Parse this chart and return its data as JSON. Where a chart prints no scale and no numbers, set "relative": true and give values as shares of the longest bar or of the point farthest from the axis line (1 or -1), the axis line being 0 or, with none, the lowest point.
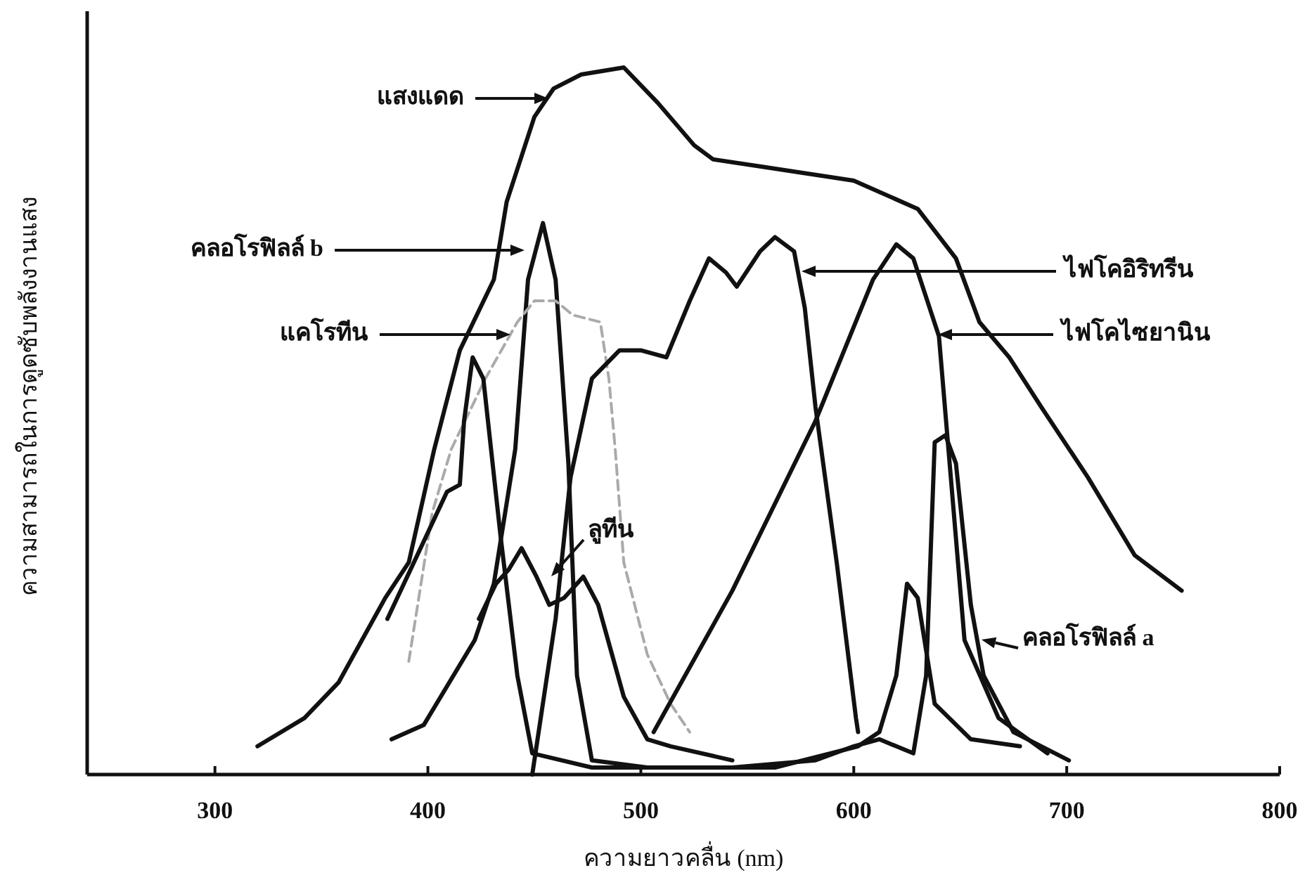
{
  "chart_data": {
    "type": "line",
    "relative": true,
    "legend": "right",
    "xlabel": "ความยาวคลื่น (nm)",
    "ylabel": "ความสามารถในการดูดซับพลังงานแสง",
    "xlim": [
      240,
      800
    ],
    "xticks": [
      300,
      400,
      500,
      600,
      700,
      800
    ],
    "series": [
      {
        "name": "แสงแดด",
        "color": "#111111",
        "x": [
          320,
          342,
          358,
          380,
          391,
          403,
          415,
          431,
          437,
          450,
          459,
          472,
          492,
          508,
          525,
          534,
          556,
          600,
          630,
          648,
          659,
          673,
          688,
          710,
          732,
          754
        ],
        "values": [
          0.04,
          0.08,
          0.13,
          0.25,
          0.3,
          0.46,
          0.6,
          0.7,
          0.81,
          0.93,
          0.97,
          0.99,
          1.0,
          0.95,
          0.89,
          0.87,
          0.86,
          0.84,
          0.8,
          0.73,
          0.64,
          0.59,
          0.52,
          0.42,
          0.31,
          0.26
        ]
      },
      {
        "name": "คลอโรฟิลล์ b",
        "color": "#111111",
        "x": [
          383,
          398,
          422,
          431,
          441,
          447,
          454,
          460,
          466,
          470,
          477,
          503,
          563,
          602,
          612,
          620,
          625,
          630,
          638,
          655,
          678
        ],
        "values": [
          0.05,
          0.07,
          0.19,
          0.27,
          0.46,
          0.7,
          0.78,
          0.7,
          0.44,
          0.14,
          0.02,
          0.01,
          0.01,
          0.04,
          0.06,
          0.14,
          0.27,
          0.25,
          0.1,
          0.05,
          0.04
        ]
      },
      {
        "name": "แคโรทีน",
        "color": "#aaaaaa",
        "line_style": "dashed",
        "x": [
          391,
          402,
          411,
          427,
          442,
          450,
          460,
          468,
          481,
          485,
          488,
          492,
          503,
          514,
          523
        ],
        "values": [
          0.16,
          0.37,
          0.46,
          0.56,
          0.64,
          0.67,
          0.67,
          0.65,
          0.64,
          0.56,
          0.46,
          0.3,
          0.17,
          0.1,
          0.06
        ]
      },
      {
        "name": "ลูทีน",
        "color": "#111111",
        "x": [
          424,
          432,
          438,
          444,
          451,
          457,
          464,
          473,
          480,
          492,
          503,
          514,
          543
        ],
        "values": [
          0.22,
          0.27,
          0.29,
          0.32,
          0.28,
          0.24,
          0.25,
          0.28,
          0.24,
          0.11,
          0.05,
          0.04,
          0.02
        ]
      },
      {
        "name": "ไฟโคอิริทรีน",
        "color": "#111111",
        "x": [
          449,
          460,
          467,
          477,
          490,
          500,
          512,
          523,
          532,
          540,
          545,
          556,
          563,
          572,
          577,
          582,
          592,
          601,
          602
        ],
        "values": [
          0.0,
          0.22,
          0.42,
          0.56,
          0.6,
          0.6,
          0.59,
          0.67,
          0.73,
          0.71,
          0.69,
          0.74,
          0.76,
          0.74,
          0.66,
          0.52,
          0.3,
          0.08,
          0.06
        ]
      },
      {
        "name": "ไฟโคไซยานิน",
        "color": "#111111",
        "x": [
          506,
          543,
          582,
          609,
          620,
          628,
          640,
          652,
          668,
          691
        ],
        "values": [
          0.06,
          0.26,
          0.5,
          0.7,
          0.75,
          0.73,
          0.62,
          0.19,
          0.08,
          0.03
        ]
      },
      {
        "name": "คลอโรฟิลล์ a",
        "color": "#111111",
        "x": [
          381,
          409,
          415,
          417,
          421,
          426,
          434,
          442,
          449,
          477,
          543,
          582,
          600,
          612,
          628,
          634,
          638,
          643,
          648,
          655,
          661,
          675,
          701
        ],
        "values": [
          0.22,
          0.4,
          0.41,
          0.5,
          0.59,
          0.56,
          0.34,
          0.14,
          0.03,
          0.01,
          0.01,
          0.02,
          0.04,
          0.05,
          0.03,
          0.14,
          0.47,
          0.48,
          0.44,
          0.24,
          0.14,
          0.06,
          0.02
        ]
      }
    ]
  }
}
